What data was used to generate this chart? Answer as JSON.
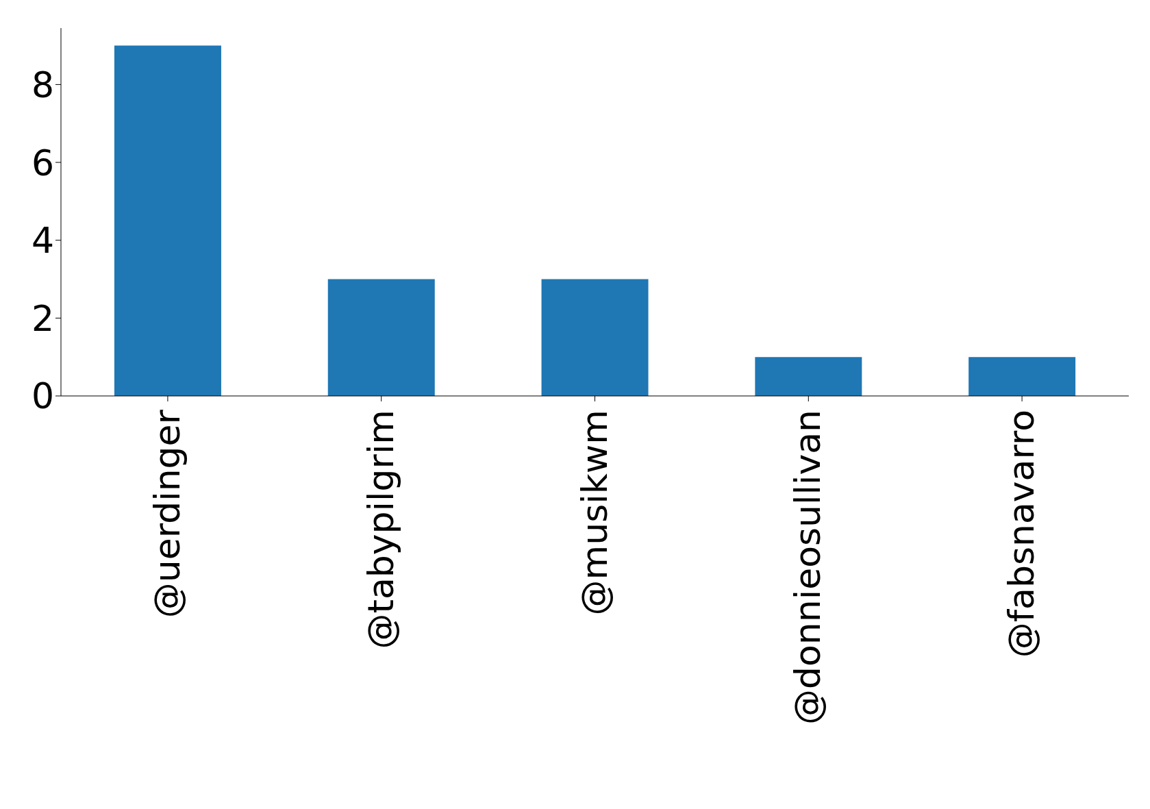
{
  "chart_data": {
    "type": "bar",
    "categories": [
      "@uerdinger",
      "@tabypilgrim",
      "@musikwm",
      "@donnieosullivan",
      "@fabsnavarro"
    ],
    "values": [
      9,
      3,
      3,
      1,
      1
    ],
    "color": "#1f77b4",
    "ylim": [
      0,
      9.45
    ],
    "yticks": [
      0,
      2,
      4,
      6,
      8
    ],
    "grid": false,
    "legend": false
  }
}
